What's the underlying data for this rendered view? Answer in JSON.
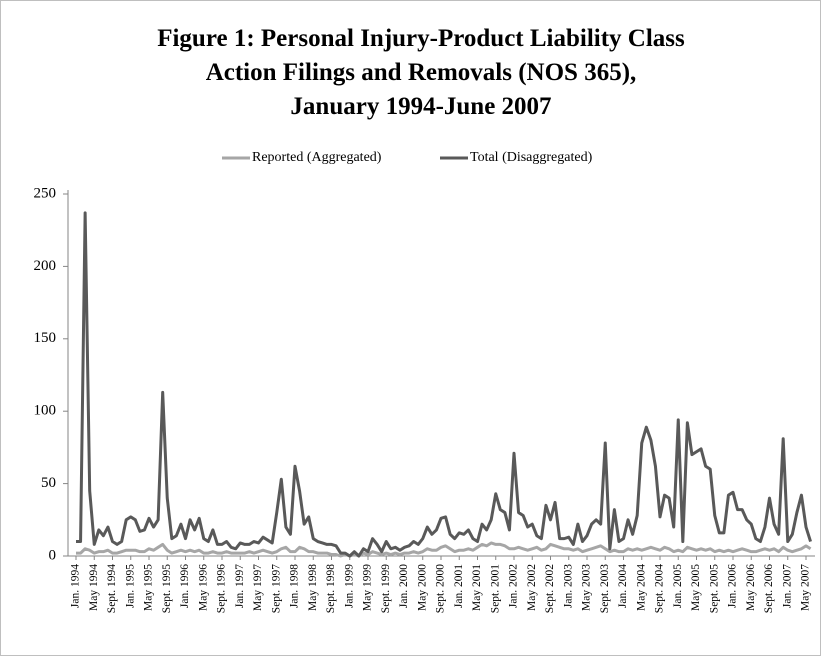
{
  "chart_data": {
    "type": "line",
    "title_lines": [
      "Figure 1: Personal Injury-Product Liability Class",
      "Action Filings and Removals (NOS 365),",
      "January 1994-June 2007"
    ],
    "categories": [
      "Jan. 1994",
      null,
      null,
      null,
      "May 1994",
      null,
      null,
      null,
      "Sept. 1994",
      null,
      null,
      null,
      "Jan. 1995",
      null,
      null,
      null,
      "May 1995",
      null,
      null,
      null,
      "Sept. 1995",
      null,
      null,
      null,
      "Jan. 1996",
      null,
      null,
      null,
      "May 1996",
      null,
      null,
      null,
      "Sept. 1996",
      null,
      null,
      null,
      "Jan. 1997",
      null,
      null,
      null,
      "May 1997",
      null,
      null,
      null,
      "Sept. 1997",
      null,
      null,
      null,
      "Jan. 1998",
      null,
      null,
      null,
      "May 1998",
      null,
      null,
      null,
      "Sept. 1998",
      null,
      null,
      null,
      "Jan. 1999",
      null,
      null,
      null,
      "May 1999",
      null,
      null,
      null,
      "Sept. 1999",
      null,
      null,
      null,
      "Jan. 2000",
      null,
      null,
      null,
      "May 2000",
      null,
      null,
      null,
      "Sept. 2000",
      null,
      null,
      null,
      "Jan. 2001",
      null,
      null,
      null,
      "May 2001",
      null,
      null,
      null,
      "Sept. 2001",
      null,
      null,
      null,
      "Jan. 2002",
      null,
      null,
      null,
      "May 2002",
      null,
      null,
      null,
      "Sept. 2002",
      null,
      null,
      null,
      "Jan. 2003",
      null,
      null,
      null,
      "May 2003",
      null,
      null,
      null,
      "Sept. 2003",
      null,
      null,
      null,
      "Jan. 2004",
      null,
      null,
      null,
      "May 2004",
      null,
      null,
      null,
      "Sept. 2004",
      null,
      null,
      null,
      "Jan. 2005",
      null,
      null,
      null,
      "May 2005",
      null,
      null,
      null,
      "Sept. 2005",
      null,
      null,
      null,
      "Jan. 2006",
      null,
      null,
      null,
      "May 2006",
      null,
      null,
      null,
      "Sept. 2006",
      null,
      null,
      null,
      "Jan. 2007",
      null,
      null,
      null,
      "May 2007",
      null
    ],
    "series": [
      {
        "name": "Reported (Aggregated)",
        "color": "#a6a6a6",
        "values": [
          2,
          2,
          5,
          4,
          2,
          3,
          3,
          4,
          2,
          2,
          3,
          4,
          4,
          4,
          3,
          3,
          5,
          4,
          6,
          8,
          4,
          2,
          3,
          4,
          3,
          4,
          3,
          4,
          2,
          2,
          3,
          2,
          2,
          3,
          2,
          2,
          2,
          2,
          3,
          2,
          3,
          4,
          3,
          2,
          3,
          5,
          6,
          3,
          3,
          6,
          5,
          3,
          3,
          2,
          2,
          2,
          1,
          1,
          0,
          1,
          0,
          1,
          0,
          2,
          1,
          3,
          2,
          1,
          2,
          1,
          2,
          1,
          2,
          2,
          3,
          2,
          3,
          5,
          4,
          4,
          6,
          7,
          5,
          3,
          4,
          4,
          5,
          4,
          6,
          8,
          7,
          9,
          8,
          8,
          7,
          5,
          5,
          6,
          5,
          4,
          5,
          6,
          4,
          5,
          8,
          7,
          6,
          5,
          5,
          4,
          5,
          3,
          4,
          5,
          6,
          7,
          5,
          3,
          4,
          3,
          3,
          5,
          4,
          5,
          4,
          5,
          6,
          5,
          4,
          6,
          5,
          3,
          4,
          3,
          6,
          5,
          4,
          5,
          4,
          5,
          3,
          4,
          3,
          4,
          3,
          4,
          5,
          4,
          3,
          3,
          4,
          5,
          4,
          5,
          3,
          6,
          4,
          3,
          4,
          5,
          7,
          5
        ]
      },
      {
        "name": "Total (Disaggregated)",
        "color": "#595959",
        "values": [
          10,
          10,
          237,
          45,
          8,
          18,
          14,
          20,
          10,
          8,
          10,
          25,
          27,
          25,
          17,
          18,
          26,
          20,
          25,
          113,
          40,
          12,
          14,
          22,
          12,
          25,
          18,
          26,
          12,
          10,
          18,
          8,
          8,
          10,
          6,
          5,
          9,
          8,
          8,
          10,
          9,
          13,
          11,
          9,
          30,
          53,
          20,
          15,
          62,
          45,
          22,
          27,
          12,
          10,
          9,
          8,
          8,
          7,
          2,
          2,
          0,
          3,
          0,
          5,
          3,
          12,
          8,
          3,
          10,
          5,
          6,
          4,
          6,
          7,
          10,
          8,
          12,
          20,
          15,
          18,
          26,
          27,
          15,
          12,
          16,
          15,
          18,
          12,
          10,
          22,
          18,
          25,
          43,
          32,
          30,
          18,
          71,
          30,
          28,
          20,
          22,
          14,
          12,
          35,
          25,
          37,
          12,
          12,
          13,
          8,
          22,
          10,
          14,
          22,
          25,
          22,
          78,
          5,
          32,
          10,
          12,
          25,
          15,
          28,
          78,
          89,
          80,
          62,
          27,
          42,
          40,
          20,
          94,
          10,
          92,
          70,
          72,
          74,
          62,
          60,
          28,
          16,
          16,
          42,
          44,
          32,
          32,
          25,
          22,
          12,
          10,
          20,
          40,
          22,
          15,
          81,
          10,
          15,
          30,
          42,
          20,
          10
        ]
      }
    ],
    "ylim": [
      0,
      250
    ],
    "yticks": [
      0,
      50,
      100,
      150,
      200,
      250
    ]
  }
}
